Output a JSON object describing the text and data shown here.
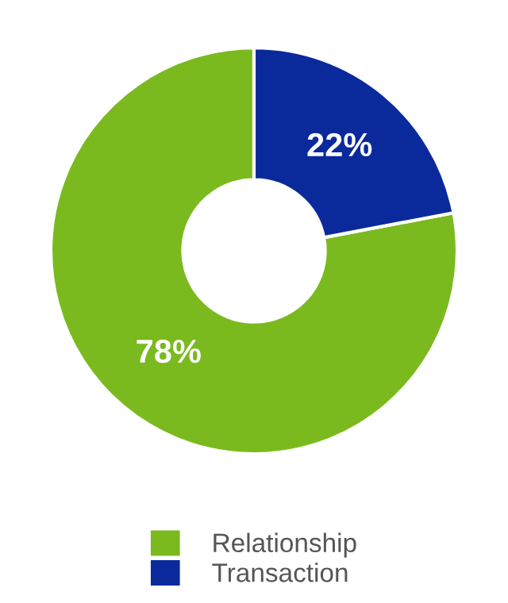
{
  "chart_data": {
    "type": "donut",
    "categories": [
      "Relationship",
      "Transaction"
    ],
    "values": [
      78,
      22
    ],
    "colors": [
      "#7aba1e",
      "#0a2a9c"
    ],
    "value_labels": [
      "78%",
      "22%"
    ],
    "legend": "bottom"
  }
}
